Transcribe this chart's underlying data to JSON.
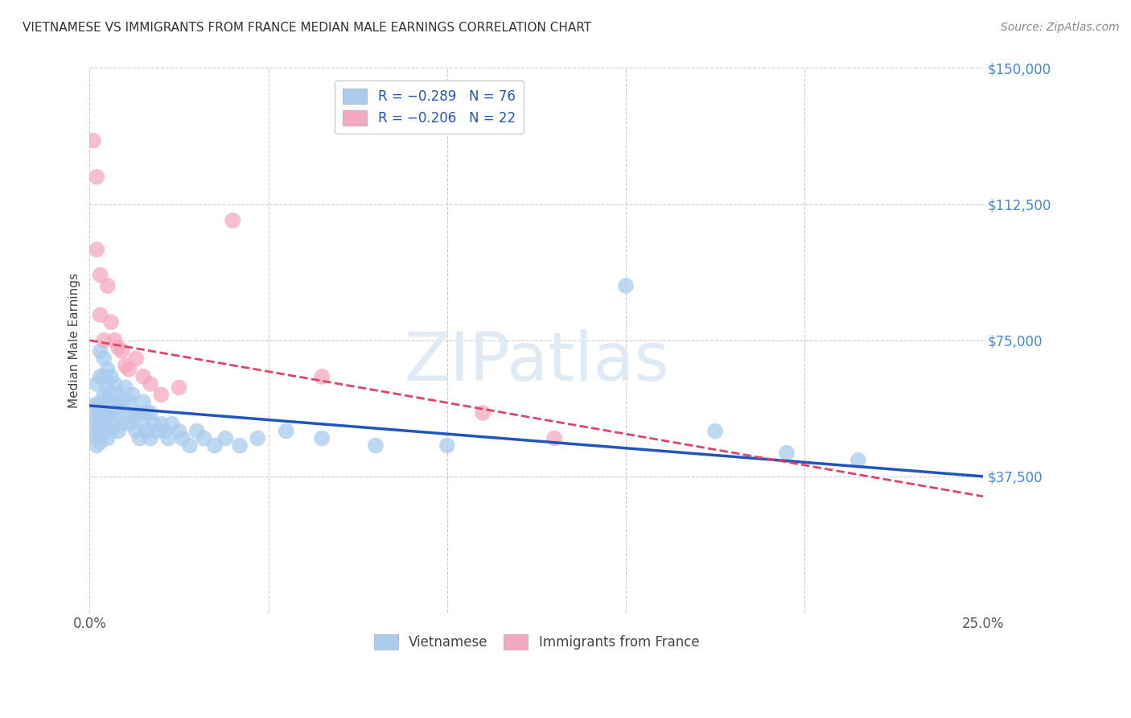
{
  "title": "VIETNAMESE VS IMMIGRANTS FROM FRANCE MEDIAN MALE EARNINGS CORRELATION CHART",
  "source": "Source: ZipAtlas.com",
  "ylabel": "Median Male Earnings",
  "xlim": [
    0.0,
    0.25
  ],
  "ylim": [
    0,
    150000
  ],
  "yticks": [
    0,
    37500,
    75000,
    112500,
    150000
  ],
  "xtick_positions": [
    0.0,
    0.05,
    0.1,
    0.15,
    0.2,
    0.25
  ],
  "xtick_labels": [
    "0.0%",
    "",
    "",
    "",
    "",
    "25.0%"
  ],
  "background_color": "#ffffff",
  "blue_scatter_color": "#aaccee",
  "pink_scatter_color": "#f4a8c0",
  "blue_line_color": "#2255bb",
  "pink_line_color": "#dd4466",
  "grid_color": "#cccccc",
  "ytick_color": "#4488dd",
  "title_color": "#333333",
  "source_color": "#888888",
  "watermark_color": "#e0eaf5",
  "legend_text_color": "#2255bb",
  "viet_x": [
    0.001,
    0.001,
    0.001,
    0.002,
    0.002,
    0.002,
    0.002,
    0.002,
    0.003,
    0.003,
    0.003,
    0.003,
    0.003,
    0.003,
    0.003,
    0.004,
    0.004,
    0.004,
    0.004,
    0.004,
    0.005,
    0.005,
    0.005,
    0.005,
    0.005,
    0.006,
    0.006,
    0.006,
    0.006,
    0.007,
    0.007,
    0.007,
    0.008,
    0.008,
    0.008,
    0.009,
    0.009,
    0.01,
    0.01,
    0.011,
    0.011,
    0.012,
    0.012,
    0.013,
    0.013,
    0.014,
    0.014,
    0.015,
    0.015,
    0.016,
    0.016,
    0.017,
    0.017,
    0.018,
    0.019,
    0.02,
    0.021,
    0.022,
    0.023,
    0.025,
    0.026,
    0.028,
    0.03,
    0.032,
    0.035,
    0.038,
    0.042,
    0.047,
    0.055,
    0.065,
    0.08,
    0.1,
    0.15,
    0.175,
    0.195,
    0.215
  ],
  "viet_y": [
    57000,
    53000,
    49000,
    63000,
    57000,
    53000,
    49000,
    46000,
    72000,
    65000,
    58000,
    55000,
    52000,
    50000,
    47000,
    70000,
    65000,
    60000,
    55000,
    50000,
    67000,
    62000,
    58000,
    54000,
    48000,
    65000,
    60000,
    55000,
    50000,
    63000,
    58000,
    52000,
    60000,
    56000,
    50000,
    58000,
    52000,
    62000,
    55000,
    58000,
    52000,
    60000,
    54000,
    55000,
    50000,
    55000,
    48000,
    58000,
    52000,
    55000,
    50000,
    55000,
    48000,
    52000,
    50000,
    52000,
    50000,
    48000,
    52000,
    50000,
    48000,
    46000,
    50000,
    48000,
    46000,
    48000,
    46000,
    48000,
    50000,
    48000,
    46000,
    46000,
    90000,
    50000,
    44000,
    42000
  ],
  "france_x": [
    0.001,
    0.002,
    0.002,
    0.003,
    0.003,
    0.004,
    0.005,
    0.006,
    0.007,
    0.008,
    0.009,
    0.01,
    0.011,
    0.013,
    0.015,
    0.017,
    0.02,
    0.025,
    0.04,
    0.065,
    0.11,
    0.13
  ],
  "france_y": [
    130000,
    120000,
    100000,
    93000,
    82000,
    75000,
    90000,
    80000,
    75000,
    73000,
    72000,
    68000,
    67000,
    70000,
    65000,
    63000,
    60000,
    62000,
    108000,
    65000,
    55000,
    48000
  ],
  "blue_line_x0": 0.0,
  "blue_line_y0": 57000,
  "blue_line_x1": 0.25,
  "blue_line_y1": 37500,
  "pink_line_x0": 0.0,
  "pink_line_y0": 75000,
  "pink_line_x1": 0.25,
  "pink_line_y1": 32000
}
